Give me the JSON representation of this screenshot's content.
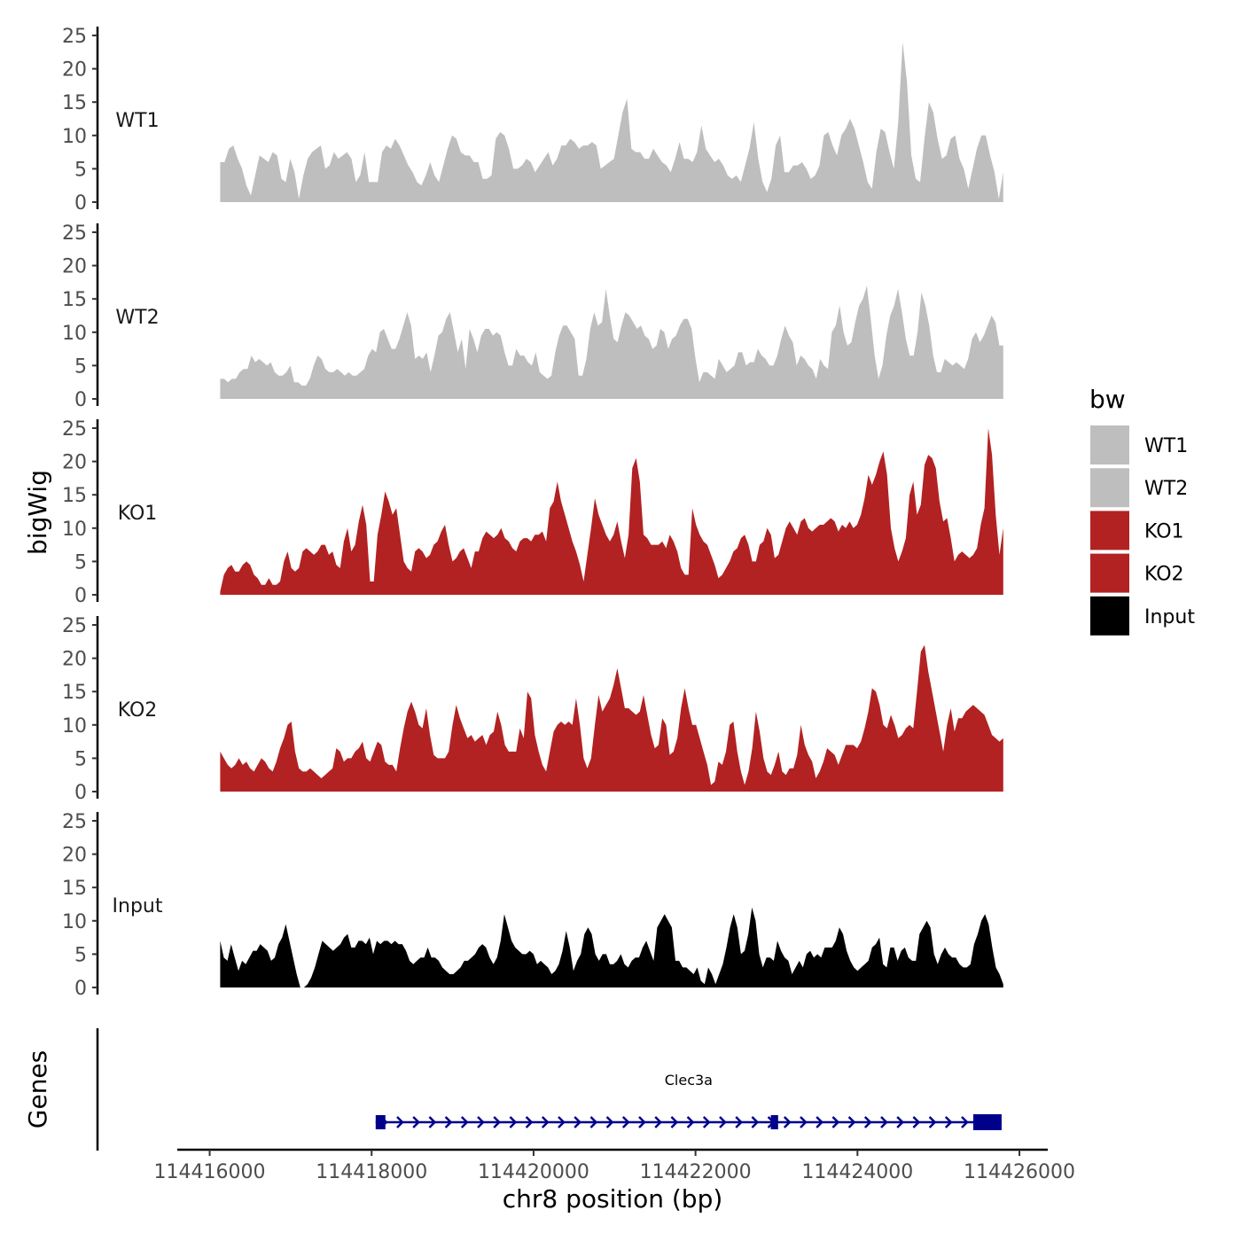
{
  "chart_data": {
    "type": "area",
    "chromosome": "chr8",
    "xlabel": "chr8 position (bp)",
    "ylabel": "bigWig",
    "gene_track_label": "Genes",
    "xlim": [
      114415600,
      114426350
    ],
    "x_ticks": [
      114416000,
      114418000,
      114420000,
      114422000,
      114424000,
      114426000
    ],
    "x_tick_labels": [
      "114416000",
      "114418000",
      "114420000",
      "114422000",
      "114424000",
      "114426000"
    ],
    "ylim": [
      0,
      25
    ],
    "y_ticks": [
      0,
      5,
      10,
      15,
      20,
      25
    ],
    "y_tick_labels": [
      "0",
      "5",
      "10",
      "15",
      "20",
      "25"
    ],
    "signal_start": 114416130,
    "signal_end": 114425800,
    "legend": {
      "title": "bw",
      "entries": [
        {
          "label": "WT1",
          "color": "#bebebe"
        },
        {
          "label": "WT2",
          "color": "#bebebe"
        },
        {
          "label": "KO1",
          "color": "#b22222"
        },
        {
          "label": "KO2",
          "color": "#b22222"
        },
        {
          "label": "Input",
          "color": "#000000"
        }
      ]
    },
    "series": [
      {
        "name": "WT1",
        "color": "#bebebe",
        "values": [
          6,
          6,
          8,
          8.5,
          6.5,
          5,
          2.5,
          1,
          4,
          7,
          6.5,
          6,
          7.5,
          7,
          3.5,
          3,
          6.5,
          4.5,
          0.5,
          4,
          6.5,
          7.5,
          8,
          8.5,
          5,
          5.5,
          7.5,
          6.5,
          7,
          7.5,
          6.5,
          3,
          4,
          7.5,
          3,
          3,
          3,
          7.5,
          8.5,
          8,
          9.5,
          8.5,
          7,
          5.5,
          4.5,
          3,
          2.5,
          4,
          6,
          4,
          3,
          5.5,
          8,
          10,
          9.5,
          7.5,
          7,
          7,
          6,
          6,
          3.5,
          3.5,
          4,
          9.5,
          10.5,
          10,
          8,
          5,
          5,
          5.5,
          6.5,
          6,
          4.5,
          5.5,
          6.5,
          7.5,
          5.5,
          6.5,
          8.5,
          8.5,
          9.5,
          9,
          8,
          8.5,
          8.5,
          9,
          8.5,
          5,
          5.5,
          6,
          6.5,
          10,
          13.5,
          15.5,
          8,
          7.5,
          7.5,
          6.5,
          6.5,
          8,
          7,
          6,
          5.5,
          4.5,
          6.5,
          9,
          6.5,
          6.5,
          6,
          7.5,
          11.5,
          8,
          7,
          6,
          6.5,
          5.5,
          4,
          3.5,
          4,
          3,
          5.5,
          8,
          12,
          6.5,
          3,
          1.5,
          3.5,
          8.5,
          10,
          4.5,
          4.5,
          5.5,
          5.5,
          6,
          5,
          3.5,
          4,
          5.5,
          10,
          10.5,
          8.5,
          7,
          10,
          11,
          12.5,
          11,
          8.5,
          6,
          3,
          2,
          7.5,
          11,
          10.5,
          7.5,
          5,
          12,
          24,
          18,
          7,
          3.5,
          3,
          9.5,
          15,
          13.5,
          9.5,
          6.5,
          7,
          9.5,
          10,
          6.5,
          5,
          2,
          5,
          8,
          10,
          10,
          7,
          4.5,
          0.5,
          4.5
        ],
        "start_value": 6,
        "end_value": 4.5,
        "gaps": []
      },
      {
        "name": "WT2",
        "color": "#bebebe",
        "values": [
          3,
          3,
          2.5,
          3,
          3,
          4,
          4.5,
          4.5,
          6.5,
          5.5,
          6,
          5.5,
          5,
          5.5,
          4,
          3.5,
          3.5,
          4,
          5,
          2.5,
          2.5,
          2,
          2,
          3,
          5,
          6.5,
          6,
          4.5,
          4,
          4,
          4.5,
          4,
          3.5,
          4,
          3.5,
          3.5,
          4,
          4.5,
          6.5,
          7.5,
          7,
          10,
          10.5,
          9,
          7.5,
          7.5,
          9,
          11,
          13,
          11,
          6,
          6.5,
          6,
          7,
          4,
          6.5,
          9.5,
          10,
          12,
          13,
          10,
          7,
          9,
          4.5,
          10.5,
          9,
          7,
          9.5,
          10.5,
          10.5,
          9.5,
          10,
          9.5,
          7,
          5,
          5,
          7.5,
          6.5,
          6.5,
          5.5,
          5,
          7,
          4,
          3.5,
          3,
          3.5,
          7,
          9.5,
          11,
          11,
          10,
          9,
          3.5,
          3.5,
          6,
          10.5,
          13,
          11,
          11.5,
          16.5,
          12.5,
          9,
          8.5,
          11,
          13,
          12.5,
          11.5,
          10.5,
          11,
          9.5,
          9,
          7.5,
          8,
          10.5,
          10,
          7.5,
          9,
          9.5,
          11,
          12,
          12,
          10.5,
          6,
          2.5,
          4,
          4,
          3.5,
          3,
          6,
          5,
          4,
          4.5,
          5,
          7,
          7,
          5,
          5.5,
          5.5,
          7.5,
          6.5,
          6,
          5,
          5,
          6.5,
          9,
          11,
          9.5,
          8.5,
          5,
          6.5,
          6,
          5,
          4.5,
          3,
          6,
          5,
          4.5,
          10,
          11,
          14,
          10,
          8,
          8.5,
          11.5,
          14,
          15,
          17,
          12,
          6.5,
          3,
          5,
          9.5,
          12.5,
          14,
          16.5,
          13,
          9,
          6.5,
          6.5,
          10,
          16,
          14,
          11,
          6.5,
          4,
          4,
          6,
          5.5,
          5,
          5.5,
          5,
          4.5,
          6,
          9,
          10,
          8.5,
          9.5,
          11,
          12.5,
          11.5,
          8,
          8
        ],
        "start_value": 3,
        "end_value": 8,
        "gaps": []
      },
      {
        "name": "KO1",
        "color": "#b22222",
        "values": [
          0.5,
          3,
          4,
          4.5,
          3.5,
          3.5,
          4.5,
          5,
          4.5,
          3,
          2.5,
          1.5,
          1.5,
          2.5,
          1.5,
          1.5,
          2,
          5,
          6.5,
          4,
          3.5,
          4,
          6.5,
          7,
          6.5,
          6,
          6.5,
          7.5,
          7.5,
          6,
          6.5,
          4.5,
          4,
          8,
          10,
          6.5,
          7.5,
          11,
          13.5,
          10.5,
          2,
          2,
          9,
          12,
          15.5,
          14,
          12,
          13,
          9,
          5,
          4,
          3.5,
          6.5,
          7,
          6.5,
          5.5,
          6,
          7.5,
          8,
          9.5,
          10.5,
          7.5,
          5,
          5.5,
          6.5,
          7,
          5.5,
          4,
          6.5,
          6.5,
          8.5,
          9.5,
          9,
          8.5,
          9,
          10,
          8.5,
          8,
          7,
          6.5,
          8,
          8.5,
          8.5,
          8,
          9,
          9,
          9.5,
          8,
          13,
          14,
          17,
          14,
          12,
          10,
          8,
          6.5,
          4.5,
          2,
          6,
          10,
          14.5,
          12,
          10.5,
          9,
          8,
          9,
          11,
          8,
          5.5,
          9,
          19,
          20.5,
          17,
          9,
          8.5,
          7.5,
          7.5,
          7.5,
          8,
          7,
          9,
          8,
          6.5,
          4,
          3,
          3,
          13,
          10.5,
          9,
          8,
          7.5,
          6,
          4.5,
          2.5,
          3,
          4,
          5,
          6.5,
          7,
          8.5,
          9,
          7.5,
          5,
          5,
          7.5,
          8,
          10,
          9,
          5.5,
          6,
          8,
          10,
          11,
          10,
          9,
          11,
          11.5,
          10,
          9.5,
          10,
          10.5,
          10.5,
          11,
          11.5,
          11,
          9.5,
          10.5,
          10,
          11,
          10,
          10.5,
          12,
          14.5,
          18,
          16.5,
          18,
          20,
          21.5,
          18,
          10,
          7,
          5,
          6.5,
          8.5,
          15,
          17,
          12,
          13.5,
          19.5,
          21,
          20.5,
          19,
          14,
          11,
          11.5,
          8.5,
          5,
          6,
          6.5,
          6,
          5.5,
          6,
          7,
          10.5,
          13,
          25,
          21,
          12,
          6,
          10
        ],
        "start_value": 0.5,
        "end_value": 10,
        "gaps": []
      },
      {
        "name": "KO2",
        "color": "#b22222",
        "values": [
          6,
          5,
          4,
          3.5,
          4,
          5,
          4,
          4.5,
          3.5,
          3,
          4,
          5,
          4.5,
          3.5,
          3,
          4.5,
          6.5,
          8,
          10,
          10.5,
          6,
          3.5,
          3,
          3,
          3.5,
          3,
          2.5,
          2,
          2.5,
          3,
          3.5,
          6.5,
          6,
          4.5,
          5,
          5,
          6,
          6.5,
          7.5,
          5,
          4.5,
          6,
          7.5,
          7,
          4.5,
          4,
          4,
          3,
          6.5,
          9.5,
          12,
          13.5,
          12,
          10,
          9.5,
          12.5,
          8.5,
          5.5,
          5,
          5,
          5,
          6,
          10,
          13,
          11,
          9.5,
          8,
          8.5,
          7.5,
          8,
          8.5,
          7,
          8.5,
          9,
          12,
          10,
          7,
          6,
          6,
          6,
          9.5,
          8,
          15,
          14,
          8.5,
          6,
          4,
          3,
          6,
          9,
          10,
          10.5,
          10,
          10.5,
          10,
          14,
          10,
          5,
          3.5,
          5,
          10,
          14.5,
          12,
          13,
          14,
          16,
          18.5,
          15.5,
          12.5,
          12.5,
          12,
          11.5,
          12,
          14.5,
          11.5,
          8.5,
          6.5,
          7,
          11,
          10,
          5.5,
          6,
          8,
          12.5,
          15.5,
          12.5,
          10,
          10,
          8,
          6,
          4,
          1,
          1.5,
          4.5,
          4,
          6,
          10,
          10.5,
          6,
          3,
          1,
          3,
          6.5,
          12,
          9,
          5,
          3,
          2.5,
          4,
          6,
          3,
          2.5,
          3.5,
          3.5,
          5.5,
          10,
          7,
          5.5,
          4.5,
          2,
          3,
          4.5,
          6.5,
          6,
          5.5,
          4,
          5.5,
          7,
          7,
          7,
          6.5,
          7.5,
          9.5,
          12,
          15.5,
          15,
          13,
          10,
          9.5,
          11.5,
          10,
          8,
          8.5,
          9.5,
          10,
          9.5,
          15,
          21,
          22,
          18,
          15,
          12,
          9,
          6,
          10,
          12.5,
          9,
          11,
          11,
          12,
          12.5,
          13,
          12.5,
          12,
          11.5,
          10,
          8.5,
          8,
          7.5,
          8
        ],
        "start_value": 6,
        "end_value": 8,
        "gaps": []
      },
      {
        "name": "Input",
        "color": "#000000",
        "values": [
          7,
          4.5,
          4,
          6.5,
          4.5,
          2.5,
          4,
          3.5,
          4.5,
          5.5,
          5.5,
          6.5,
          6,
          5.5,
          4,
          4.5,
          6.5,
          7.5,
          9.5,
          7,
          4.5,
          2,
          0,
          0,
          0.5,
          1.5,
          3,
          5,
          7,
          6.5,
          6,
          5.5,
          6,
          6.5,
          7.5,
          8,
          6,
          6,
          7,
          7,
          6.5,
          7.5,
          5,
          7,
          6.5,
          7,
          7,
          6.5,
          7,
          6.5,
          6.5,
          5.5,
          4,
          3.5,
          4,
          4.5,
          4.5,
          6,
          4.5,
          4.5,
          4,
          3,
          2.5,
          2,
          2,
          2.5,
          3,
          4,
          4,
          4.5,
          5,
          6,
          6.5,
          6,
          4.5,
          3.5,
          4.5,
          7,
          11,
          9,
          7,
          6,
          5.5,
          5,
          5,
          5.5,
          5,
          3.5,
          4,
          3.5,
          3,
          2,
          2.5,
          3.5,
          5.5,
          8.5,
          6,
          2.5,
          4,
          5,
          8,
          9,
          8,
          5,
          4,
          5,
          5,
          3.5,
          3.5,
          4,
          5,
          3.5,
          3,
          4,
          4.5,
          4.5,
          6,
          7,
          5.5,
          4,
          9,
          10,
          11,
          10,
          9,
          4,
          4,
          3,
          3,
          2.5,
          2,
          3,
          1,
          0.5,
          3,
          2,
          0.5,
          2,
          3.5,
          6,
          9,
          11,
          9,
          5,
          5.5,
          8,
          12,
          10,
          5,
          3,
          4.5,
          4.5,
          4,
          7,
          5.5,
          4.5,
          4,
          2,
          3,
          4,
          3,
          5,
          5.5,
          4.5,
          5,
          4.5,
          6,
          6,
          6,
          7,
          9,
          8,
          5.5,
          4,
          3,
          2.5,
          3,
          3.5,
          4,
          6,
          6.5,
          7.5,
          3.5,
          3,
          6,
          6,
          4,
          5.5,
          6,
          4.5,
          4,
          4,
          8,
          9,
          10,
          9,
          5,
          3.5,
          5,
          6,
          5,
          4.5,
          4.5,
          3.5,
          3,
          3,
          3.5,
          6.5,
          8,
          10,
          11,
          9.5,
          6,
          3,
          2,
          0.5
        ],
        "start_value": 7,
        "end_value": 0.5,
        "gaps": [
          [
            0.0725,
            0.0735
          ]
        ]
      }
    ],
    "gene": {
      "name": "Clec3a",
      "strand": "+",
      "start": 114418050,
      "end": 114425780,
      "exons": [
        [
          114418050,
          114418170
        ],
        [
          114422930,
          114423020
        ],
        [
          114425430,
          114425780
        ]
      ],
      "color": "#00008b"
    }
  }
}
